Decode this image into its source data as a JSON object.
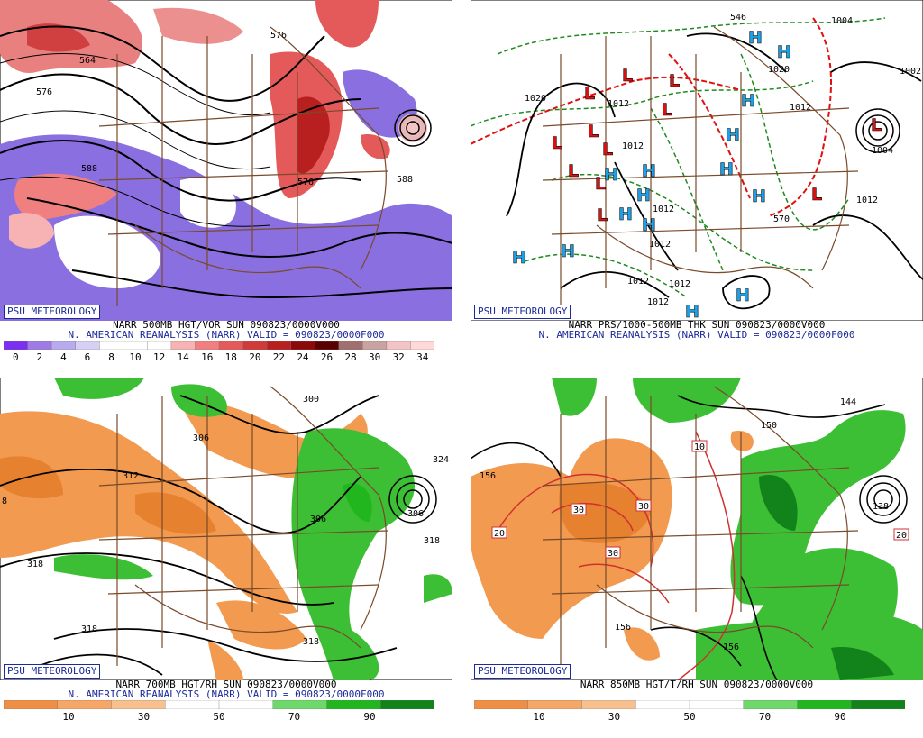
{
  "panels": [
    {
      "badge": "PSU METEOROLOGY",
      "caption1": "NARR 500MB HGT/VOR SUN 090823/0000V000",
      "caption2": "N. AMERICAN REANALYSIS (NARR) VALID = 090823/0000F000",
      "colorbar": {
        "colors": [
          "#7b2ff0",
          "#9e7be6",
          "#b7aaee",
          "#d6d0f4",
          "#ffffff",
          "#ffffff",
          "#ffffff",
          "#f7b3b3",
          "#f08080",
          "#e45a5a",
          "#d03a3a",
          "#b82020",
          "#8b0a0a",
          "#5a0000",
          "#a07070",
          "#c9a2a2",
          "#f3c4c4",
          "#ffd8d8"
        ],
        "ticks": [
          "0",
          "2",
          "4",
          "6",
          "8",
          "10",
          "12",
          "14",
          "16",
          "18",
          "20",
          "22",
          "24",
          "26",
          "28",
          "30",
          "32",
          "34"
        ]
      },
      "contour_labels": [
        "564",
        "576",
        "588",
        "576",
        "588",
        "576"
      ]
    },
    {
      "badge": "PSU METEOROLOGY",
      "caption1": "NARR PRS/1000-500MB THK SUN 090823/0000V000",
      "caption2": "N. AMERICAN REANALYSIS (NARR) VALID = 090823/0000F000",
      "contour_labels": [
        "1020",
        "1012",
        "1012",
        "1012",
        "1012",
        "1012",
        "1012",
        "1012",
        "1012",
        "1020",
        "1004",
        "1004",
        "1012",
        "1002",
        "546",
        "570"
      ],
      "centers": {
        "low_letter": "L",
        "high_letter": "H"
      }
    },
    {
      "badge": "PSU METEOROLOGY",
      "caption1": "NARR 700MB HGT/RH SUN 090823/0000V000",
      "caption2": "N. AMERICAN REANALYSIS (NARR) VALID = 090823/0000F000",
      "colorbar": {
        "colors": [
          "#ee8f45",
          "#f4a766",
          "#f8c08e",
          "#ffffff",
          "#ffffff",
          "#6fd86a",
          "#22b61e",
          "#12821a"
        ],
        "ticks": [
          "10",
          "30",
          "50",
          "70",
          "90"
        ]
      },
      "contour_labels": [
        "300",
        "306",
        "312",
        "318",
        "318",
        "318",
        "318",
        "324",
        "306",
        "8",
        "306"
      ]
    },
    {
      "badge": "PSU METEOROLOGY",
      "caption1": "NARR 850MB HGT/T/RH SUN 090823/0000V000",
      "caption2": "",
      "colorbar": {
        "colors": [
          "#ee8f45",
          "#f4a766",
          "#f8c08e",
          "#ffffff",
          "#ffffff",
          "#6fd86a",
          "#22b61e",
          "#12821a"
        ],
        "ticks": [
          "10",
          "30",
          "50",
          "70",
          "90"
        ]
      },
      "contour_labels": [
        "156",
        "150",
        "144",
        "156",
        "156",
        "138"
      ],
      "temp_labels": [
        "10",
        "20",
        "30",
        "30",
        "30",
        "20"
      ]
    }
  ],
  "colors": {
    "vort_purple": "#8a6fe0",
    "vort_red": "#e14b4b",
    "rh_dry": "#f19a50",
    "rh_moist": "#3cbf34",
    "border": "#7a4a2a",
    "high": "#1ea0e6",
    "low": "#e01010",
    "thickness": "#1f8a1f"
  }
}
